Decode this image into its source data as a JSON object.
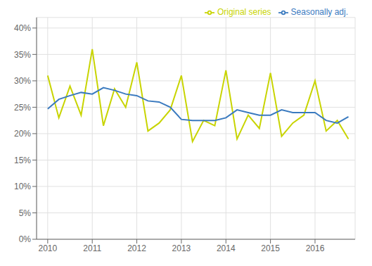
{
  "chart_data": {
    "type": "line",
    "x": [
      2010.0,
      2010.25,
      2010.5,
      2010.75,
      2011.0,
      2011.25,
      2011.5,
      2011.75,
      2012.0,
      2012.25,
      2012.5,
      2012.75,
      2013.0,
      2013.25,
      2013.5,
      2013.75,
      2014.0,
      2014.25,
      2014.5,
      2014.75,
      2015.0,
      2015.25,
      2015.5,
      2015.75,
      2016.0,
      2016.25,
      2016.5,
      2016.75
    ],
    "series": [
      {
        "name": "Original series",
        "color": "#c8d400",
        "values": [
          31.0,
          23.0,
          29.0,
          23.5,
          36.0,
          21.5,
          28.5,
          25.0,
          33.5,
          20.5,
          22.0,
          24.5,
          31.0,
          18.5,
          22.5,
          21.5,
          32.0,
          19.0,
          23.5,
          21.0,
          31.5,
          19.5,
          22.0,
          23.5,
          30.0,
          20.5,
          22.5,
          19.0
        ]
      },
      {
        "name": "Seasonally adj.",
        "color": "#3a7abf",
        "values": [
          24.7,
          26.5,
          27.2,
          27.8,
          27.5,
          28.7,
          28.2,
          27.5,
          27.2,
          26.2,
          26.0,
          25.0,
          22.7,
          22.5,
          22.5,
          22.5,
          23.0,
          24.5,
          24.0,
          23.5,
          23.5,
          24.5,
          24.0,
          24.0,
          24.0,
          22.5,
          22.0,
          23.2
        ]
      }
    ],
    "xlim": [
      2009.75,
      2016.9
    ],
    "xticks": [
      2010,
      2011,
      2012,
      2013,
      2014,
      2015,
      2016
    ],
    "ylim": [
      0,
      42
    ],
    "yticks": [
      {
        "value": 0,
        "label": "0%"
      },
      {
        "value": 5,
        "label": "5%"
      },
      {
        "value": 10,
        "label": "10%"
      },
      {
        "value": 15,
        "label": "15%"
      },
      {
        "value": 20,
        "label": "20%"
      },
      {
        "value": 25,
        "label": "25%"
      },
      {
        "value": 30,
        "label": "30%"
      },
      {
        "value": 35,
        "label": "35%"
      },
      {
        "value": 40,
        "label": "40%"
      }
    ],
    "grid": true,
    "legend": "upper right"
  }
}
